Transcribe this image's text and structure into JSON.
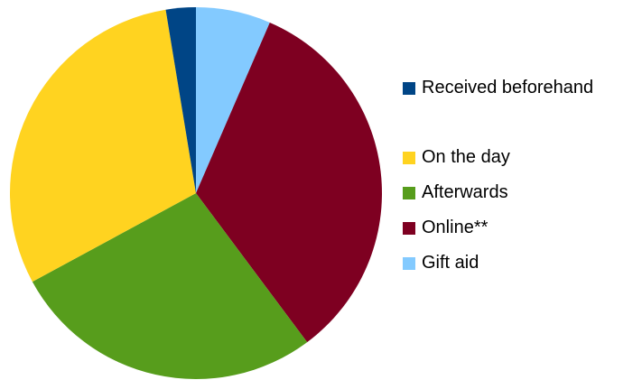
{
  "chart_data": {
    "type": "pie",
    "start_angle_deg": 0,
    "direction": "clockwise",
    "slices": [
      {
        "label": "Gift aid",
        "value": 6.5,
        "color": "#83caff"
      },
      {
        "label": "Online**",
        "value": 33.3,
        "color": "#7e0021"
      },
      {
        "label": "Afterwards",
        "value": 27.3,
        "color": "#579d1c"
      },
      {
        "label": "On the day",
        "value": 30.3,
        "color": "#ffd320"
      },
      {
        "label": "Received beforehand",
        "value": 2.6,
        "color": "#004586"
      }
    ],
    "legend": {
      "placement": "right",
      "items": [
        {
          "label": "Received beforehand",
          "color": "#004586"
        },
        {
          "label": "On the day",
          "color": "#ffd320"
        },
        {
          "label": "Afterwards",
          "color": "#579d1c"
        },
        {
          "label": "Online**",
          "color": "#7e0021"
        },
        {
          "label": "Gift aid",
          "color": "#83caff"
        }
      ]
    }
  }
}
